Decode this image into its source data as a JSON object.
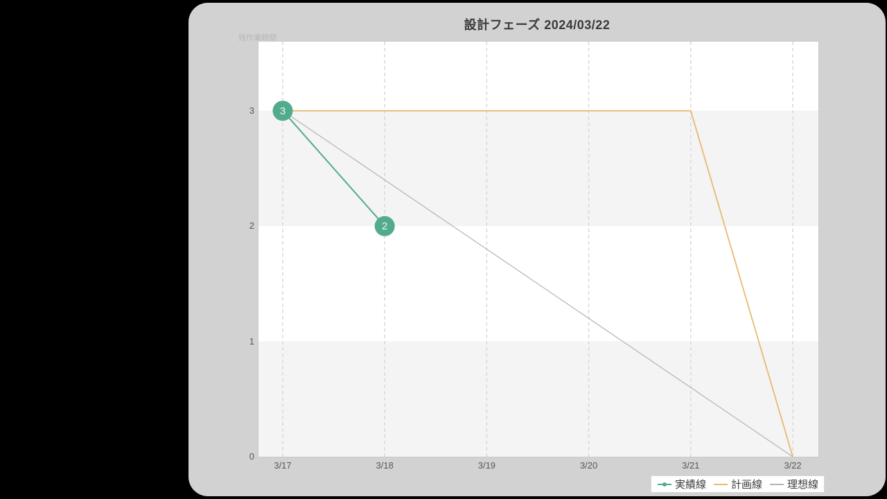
{
  "window": {
    "background": "#000000",
    "card_background": "#d2d2d2"
  },
  "chart_data": {
    "type": "line",
    "title": "設計フェーズ 2024/03/22",
    "ylabel": "残作業時間",
    "x_tick_labels": [
      "3/17",
      "3/18",
      "3/19",
      "3/20",
      "3/21",
      "3/22"
    ],
    "y_tick_labels": [
      "0",
      "1",
      "2",
      "3"
    ],
    "ylim": [
      0,
      3.6
    ],
    "grid": "vertical-dashed",
    "gridline_color": "#d9d9d9",
    "plot_background": "#ffffff",
    "band_color": "#f4f4f4",
    "bands": [
      [
        0,
        1
      ],
      [
        2,
        3
      ]
    ],
    "series": [
      {
        "name": "実績線",
        "color": "#52ab8c",
        "width": 2,
        "x": [
          0,
          1
        ],
        "values": [
          3,
          2
        ],
        "markers": true,
        "point_labels": [
          "3",
          "2"
        ],
        "marker_radius": 14.5,
        "point_label_color": "#edf7f2"
      },
      {
        "name": "計画線",
        "color": "#e8ba6e",
        "width": 1.8,
        "x": [
          0,
          4,
          5
        ],
        "values": [
          3,
          3,
          0
        ],
        "markers": false
      },
      {
        "name": "理想線",
        "color": "#b3b3b3",
        "width": 1.2,
        "x": [
          0,
          5
        ],
        "values": [
          3,
          0
        ],
        "markers": false
      }
    ],
    "legend_position": "bottom-right"
  }
}
